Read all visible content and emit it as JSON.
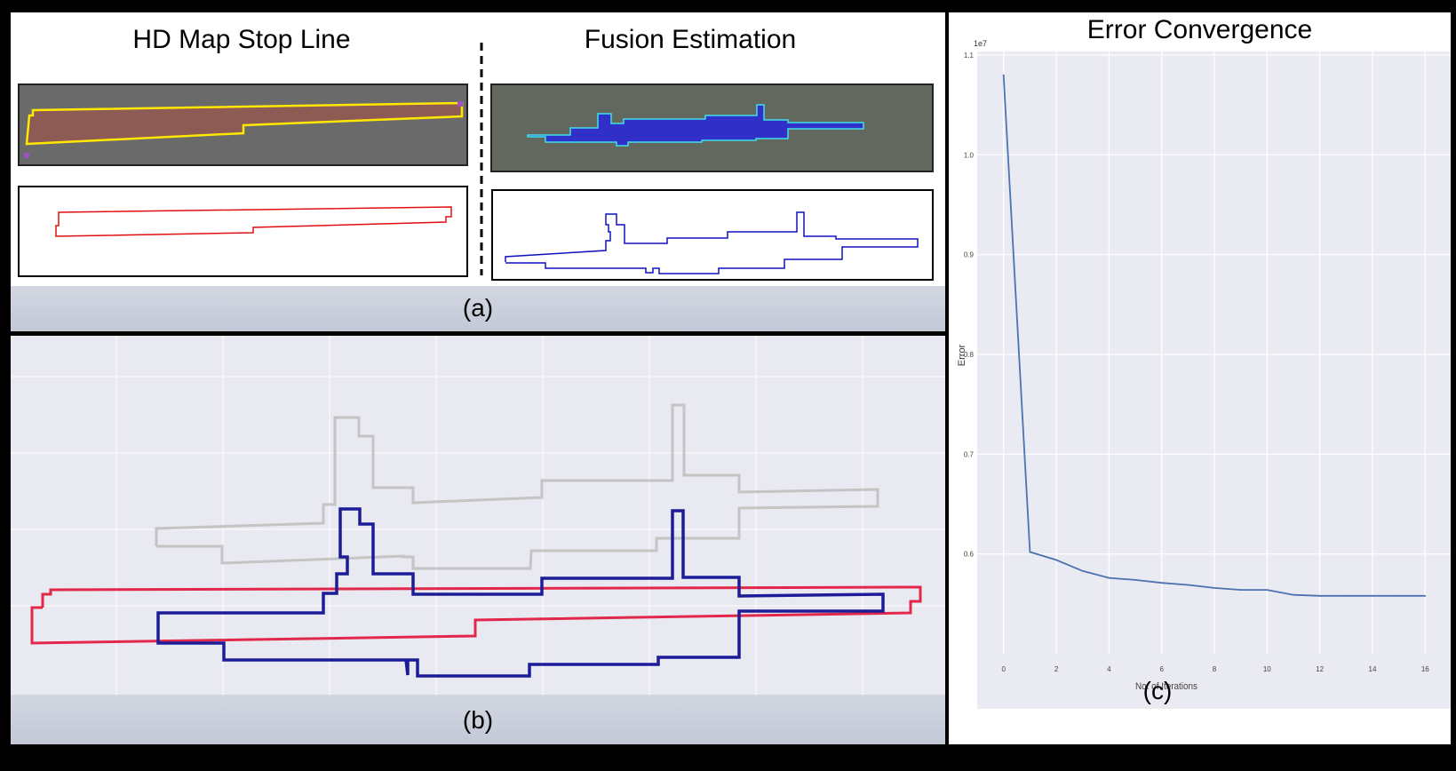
{
  "panel_a": {
    "left_title": "HD Map Stop Line",
    "right_title": "Fusion Estimation",
    "caption": "(a)"
  },
  "panel_b": {
    "caption": "(b)"
  },
  "panel_c": {
    "title": "Error Convergence",
    "caption": "(c)",
    "colors": {
      "line": "#4c72b0",
      "plot_bg": "#eaeaf2",
      "grid": "#ffffff"
    }
  },
  "chart_data": {
    "type": "line",
    "title": "Error Convergence",
    "xlabel": "No. of Iterations",
    "ylabel": "Error",
    "y_offset_label": "1e7",
    "xlim": [
      -0.8,
      16.8
    ],
    "ylim": [
      0.5,
      1.1
    ],
    "x_ticks": [
      0,
      2,
      4,
      6,
      8,
      10,
      12,
      14,
      16
    ],
    "y_ticks": [
      0.6,
      0.7,
      0.8,
      0.9,
      1.0,
      1.1
    ],
    "series": [
      {
        "name": "error",
        "x": [
          0,
          1,
          2,
          3,
          4,
          5,
          6,
          7,
          8,
          9,
          10,
          11,
          12,
          13,
          14,
          15,
          16
        ],
        "values": [
          1.08,
          0.602,
          0.594,
          0.583,
          0.576,
          0.574,
          0.571,
          0.569,
          0.566,
          0.564,
          0.564,
          0.559,
          0.558,
          0.558,
          0.558,
          0.558,
          0.558
        ]
      }
    ]
  }
}
